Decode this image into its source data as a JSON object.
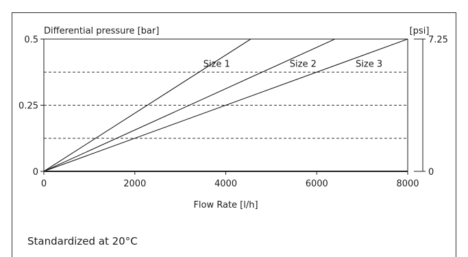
{
  "chart_data": {
    "type": "line",
    "ylabel": "Differential pressure [bar]",
    "ylabel_right": "[psi]",
    "xlabel": "Flow Rate [l/h]",
    "xlim": [
      0,
      8000
    ],
    "ylim": [
      0,
      0.5
    ],
    "xticks": [
      0,
      2000,
      4000,
      6000,
      8000
    ],
    "xtick_labels": [
      "0",
      "2000",
      "4000",
      "6000",
      "8000"
    ],
    "yticks": [
      0,
      0.25,
      0.5
    ],
    "ytick_labels": [
      "0",
      "0.25",
      "0.5"
    ],
    "right_ylim": [
      0,
      7.25
    ],
    "right_yticks": [
      0,
      7.25
    ],
    "right_ytick_labels": [
      "0",
      "7.25"
    ],
    "gridlines_y": [
      0.125,
      0.25,
      0.375
    ],
    "grid_style": "dashed",
    "series": [
      {
        "name": "Size 1",
        "x": [
          0,
          4550
        ],
        "y": [
          0,
          0.5
        ],
        "label_at": [
          3800,
          0.395
        ]
      },
      {
        "name": "Size 2",
        "x": [
          0,
          6400
        ],
        "y": [
          0,
          0.5
        ],
        "label_at": [
          5700,
          0.395
        ]
      },
      {
        "name": "Size 3",
        "x": [
          0,
          8000
        ],
        "y": [
          0,
          0.5
        ],
        "label_at": [
          7150,
          0.395
        ]
      }
    ],
    "series_color": "#1a1a1a"
  },
  "footnote": "Standardized at 20°C"
}
